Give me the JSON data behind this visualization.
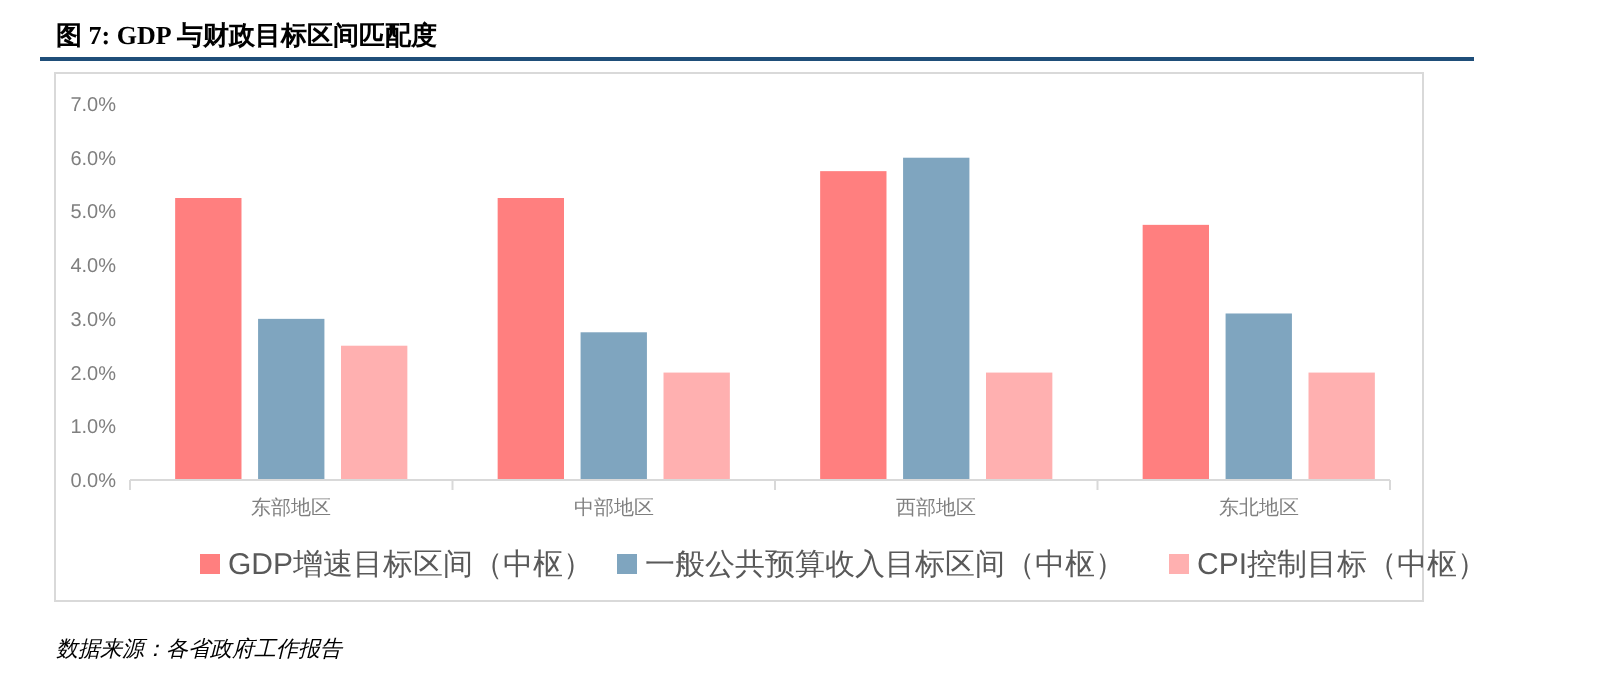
{
  "chart_data": {
    "type": "bar",
    "title": "图 7: GDP 与财政目标区间匹配度",
    "categories": [
      "东部地区",
      "中部地区",
      "西部地区",
      "东北地区"
    ],
    "series": [
      {
        "name": "GDP增速目标区间（中枢）",
        "color": "#ff7f7f",
        "values": [
          5.25,
          5.25,
          5.75,
          4.75
        ]
      },
      {
        "name": "一般公共预算收入目标区间（中枢）",
        "color": "#7fa5bf",
        "values": [
          3.0,
          2.75,
          6.0,
          3.1
        ]
      },
      {
        "name": "CPI控制目标（中枢）",
        "color": "#ffb0b0",
        "values": [
          2.5,
          2.0,
          2.0,
          2.0
        ]
      }
    ],
    "ylim": [
      0,
      7
    ],
    "yticks": [
      {
        "value": 0,
        "label": "0.0%"
      },
      {
        "value": 1,
        "label": "1.0%"
      },
      {
        "value": 2,
        "label": "2.0%"
      },
      {
        "value": 3,
        "label": "3.0%"
      },
      {
        "value": 4,
        "label": "4.0%"
      },
      {
        "value": 5,
        "label": "5.0%"
      },
      {
        "value": 6,
        "label": "6.0%"
      },
      {
        "value": 7,
        "label": "7.0%"
      }
    ],
    "grid": false,
    "legend": "bottom",
    "annotations": [
      "数据来源：各省政府工作报告"
    ]
  }
}
